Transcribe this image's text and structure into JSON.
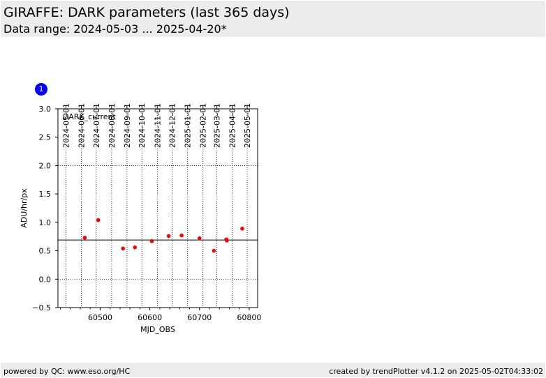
{
  "header": {
    "title": "GIRAFFE: DARK parameters (last 365 days)",
    "subtitle": "Data range: 2024-05-03 ... 2025-04-20*"
  },
  "badge": {
    "label": "1",
    "color": "#0000ff"
  },
  "footer": {
    "left": "powered by QC: www.eso.org/HC",
    "right": "created by trendPlotter v4.1.2 on 2025-05-02T04:33:02"
  },
  "chart_data": {
    "type": "scatter",
    "title": "",
    "panel_label": "DARK_current",
    "xlabel": "MJD_OBS",
    "ylabel": "ADU/hr/px",
    "xlim": [
      60415,
      60817
    ],
    "ylim": [
      -0.5,
      3.0
    ],
    "x_ticks": [
      60500,
      60600,
      60700,
      60800
    ],
    "y_ticks": [
      -0.5,
      0.0,
      0.5,
      1.0,
      1.5,
      2.0,
      2.5,
      3.0
    ],
    "y_tick_labels": [
      "−0.5",
      "0.0",
      "0.5",
      "1.0",
      "1.5",
      "2.0",
      "2.5",
      "3.0"
    ],
    "top_axis_dates": [
      {
        "label": "2024-05-01",
        "mjd": 60431
      },
      {
        "label": "2024-06-01",
        "mjd": 60462
      },
      {
        "label": "2024-07-01",
        "mjd": 60492
      },
      {
        "label": "2024-08-01",
        "mjd": 60523
      },
      {
        "label": "2024-09-01",
        "mjd": 60554
      },
      {
        "label": "2024-10-01",
        "mjd": 60584
      },
      {
        "label": "2024-11-01",
        "mjd": 60615
      },
      {
        "label": "2024-12-01",
        "mjd": 60645
      },
      {
        "label": "2025-01-01",
        "mjd": 60676
      },
      {
        "label": "2025-02-01",
        "mjd": 60707
      },
      {
        "label": "2025-03-01",
        "mjd": 60735
      },
      {
        "label": "2025-04-01",
        "mjd": 60766
      },
      {
        "label": "2025-05-01",
        "mjd": 60796
      }
    ],
    "reference_line": 0.69,
    "dotted_hlines": [
      0.0,
      2.0
    ],
    "series": [
      {
        "color": "#ff0000",
        "points": [
          {
            "x": 60469,
            "y": 0.73
          },
          {
            "x": 60496,
            "y": 1.04
          },
          {
            "x": 60546,
            "y": 0.54
          },
          {
            "x": 60570,
            "y": 0.56
          },
          {
            "x": 60604,
            "y": 0.67
          },
          {
            "x": 60638,
            "y": 0.76
          },
          {
            "x": 60664,
            "y": 0.77
          },
          {
            "x": 60700,
            "y": 0.72
          },
          {
            "x": 60729,
            "y": 0.5
          },
          {
            "x": 60754,
            "y": 0.7
          },
          {
            "x": 60755,
            "y": 0.68
          },
          {
            "x": 60786,
            "y": 0.89
          }
        ]
      }
    ]
  }
}
